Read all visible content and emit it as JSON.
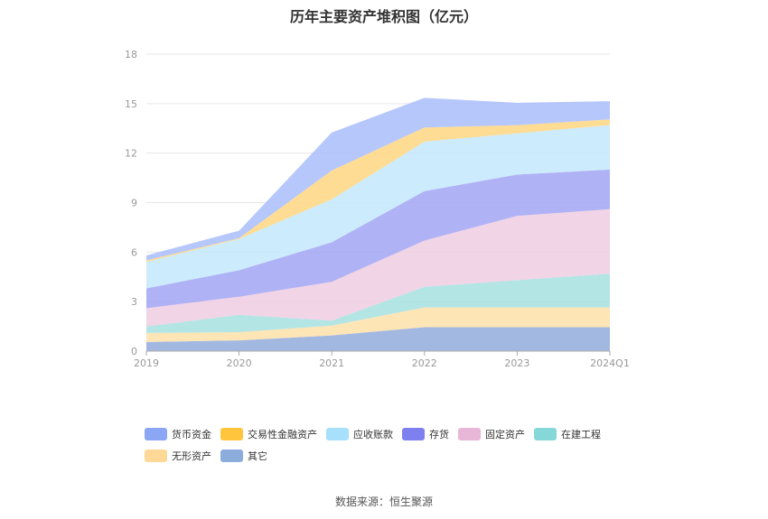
{
  "chart_data": {
    "type": "area",
    "stacked": true,
    "title": "历年主要资产堆积图（亿元）",
    "categories": [
      "2019",
      "2020",
      "2021",
      "2022",
      "2023",
      "2024Q1"
    ],
    "ylim": [
      0,
      18
    ],
    "yticks": [
      0,
      3,
      6,
      9,
      12,
      15,
      18
    ],
    "grid": true,
    "legend_position": "bottom",
    "series": [
      {
        "name": "其它",
        "color": "#93acdc",
        "values": [
          0.55,
          0.65,
          0.95,
          1.45,
          1.45,
          1.45
        ]
      },
      {
        "name": "无形资产",
        "color": "#fde0a8",
        "values": [
          0.55,
          0.5,
          0.6,
          1.2,
          1.2,
          1.2
        ]
      },
      {
        "name": "在建工程",
        "color": "#a7e0e0",
        "values": [
          0.4,
          1.05,
          0.3,
          1.25,
          1.65,
          2.05
        ]
      },
      {
        "name": "固定资产",
        "color": "#eecce0",
        "values": [
          1.1,
          1.1,
          2.35,
          2.8,
          3.9,
          3.9
        ]
      },
      {
        "name": "存货",
        "color": "#a2a4f4",
        "values": [
          1.2,
          1.6,
          2.4,
          3.0,
          2.5,
          2.4
        ]
      },
      {
        "name": "应收账款",
        "color": "#c3e8fb",
        "values": [
          1.6,
          1.9,
          2.6,
          3.0,
          2.5,
          2.7
        ]
      },
      {
        "name": "交易性金融资产",
        "color": "#fed680",
        "values": [
          0.1,
          0.05,
          1.75,
          0.85,
          0.5,
          0.35
        ]
      },
      {
        "name": "货币资金",
        "color": "#a9bdfa",
        "values": [
          0.3,
          0.45,
          2.3,
          1.8,
          1.35,
          1.1
        ]
      }
    ]
  },
  "legend": [
    {
      "name": "货币资金",
      "color": "#8aa6f5"
    },
    {
      "name": "交易性金融资产",
      "color": "#ffc53d"
    },
    {
      "name": "应收账款",
      "color": "#a6e0fb"
    },
    {
      "name": "存货",
      "color": "#7f80f0"
    },
    {
      "name": "固定资产",
      "color": "#e8b6d6"
    },
    {
      "name": "在建工程",
      "color": "#86d8d8"
    },
    {
      "name": "无形资产",
      "color": "#fdd897"
    },
    {
      "name": "其它",
      "color": "#8cacdc"
    }
  ],
  "source": "数据来源：恒生聚源"
}
